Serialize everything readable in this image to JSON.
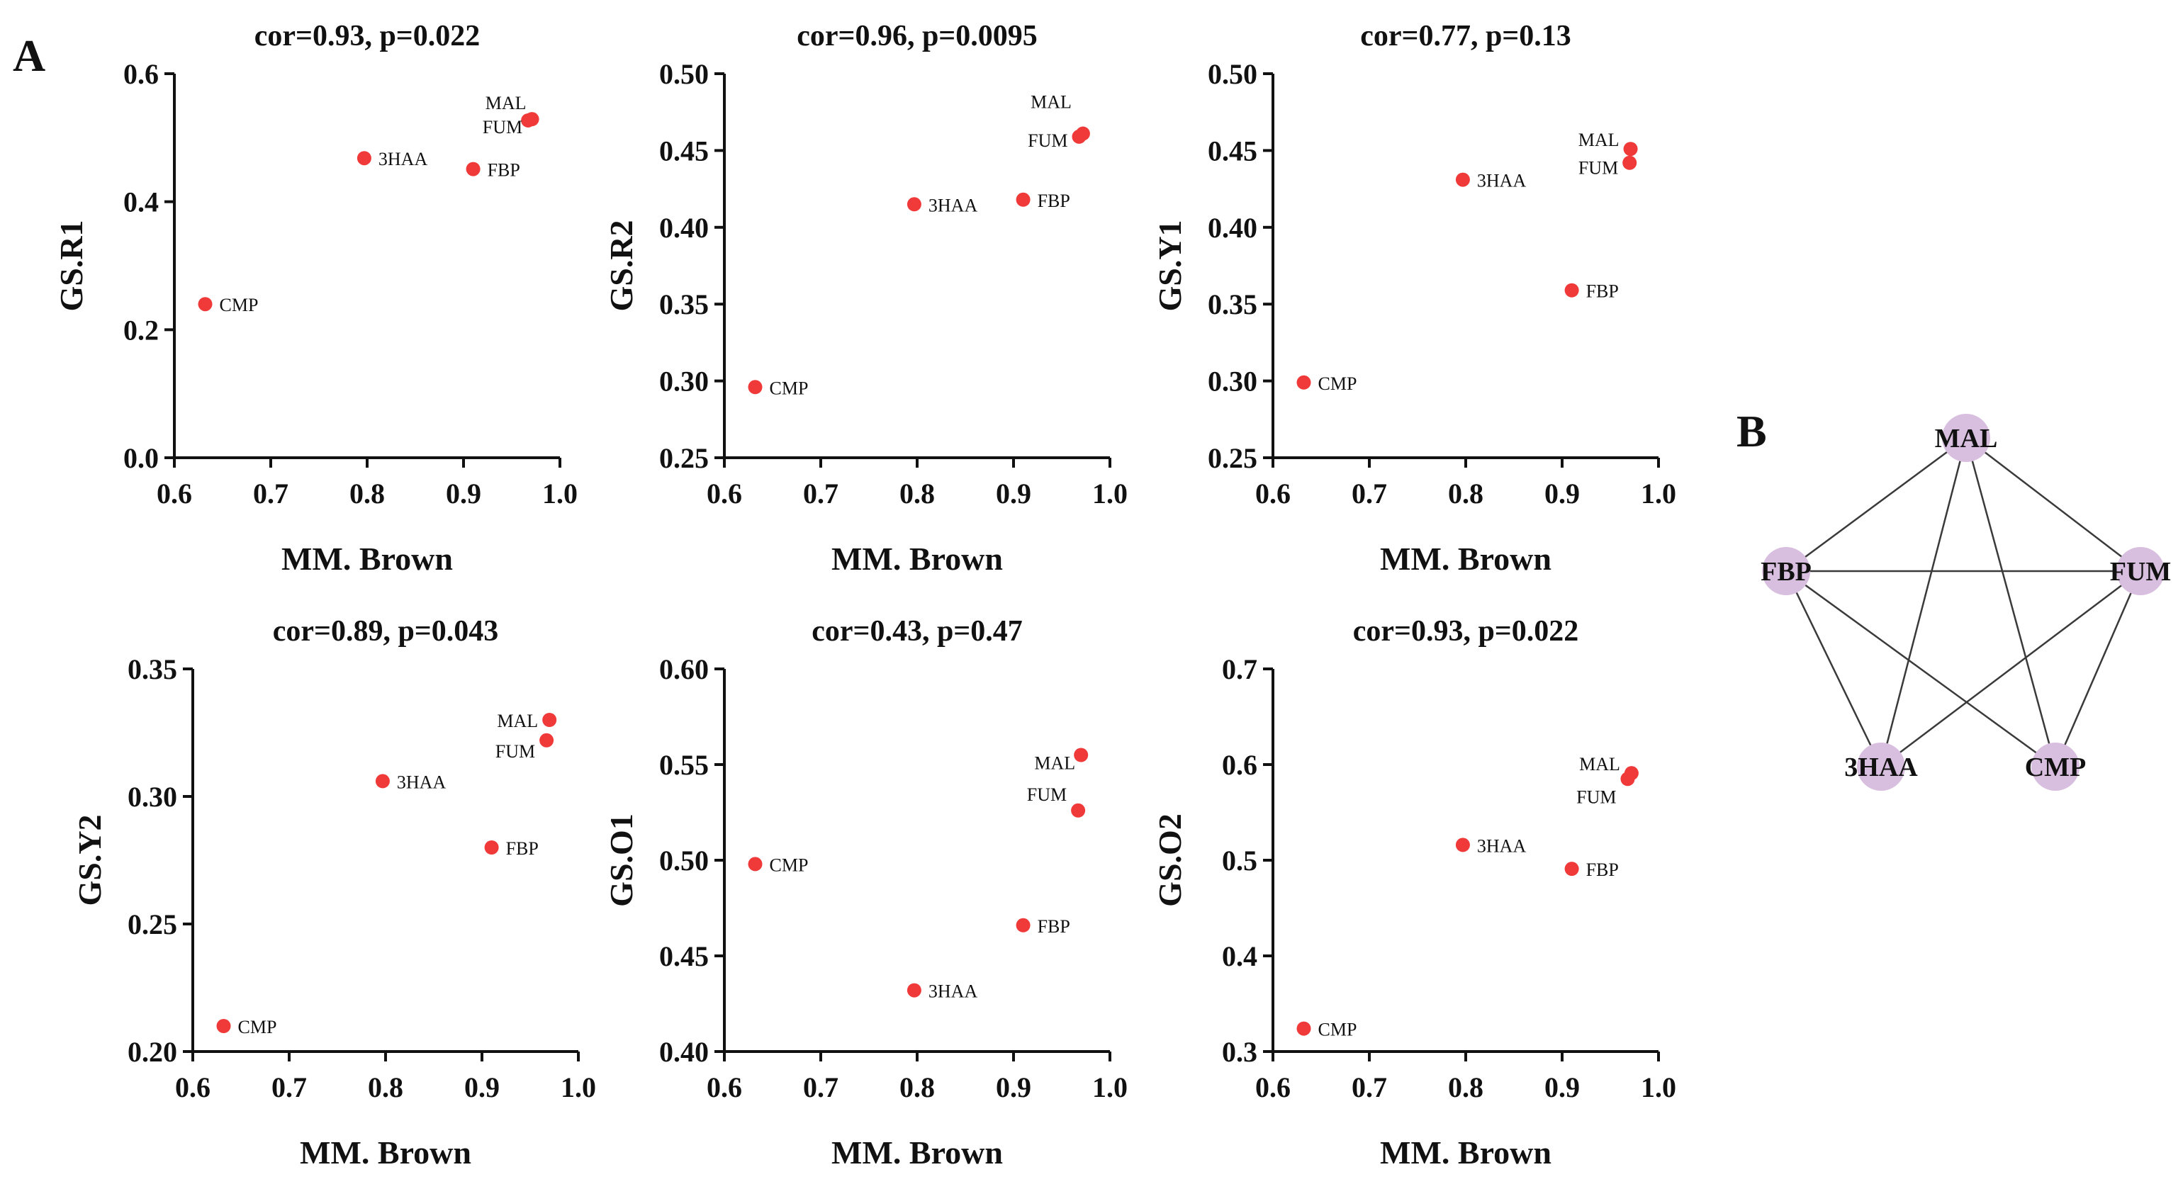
{
  "figure": {
    "panel_a": "A",
    "panel_b": "B"
  },
  "colors": {
    "point": "#f03a3a",
    "node": "#d9bfdf",
    "edge": "#3a3a3a",
    "axis": "#111111"
  },
  "chart_data": [
    {
      "type": "scatter",
      "title": "cor=0.93, p=0.022",
      "xlabel": "MM. Brown",
      "ylabel": "GS.R1",
      "xlim": [
        0.6,
        1.0
      ],
      "ylim": [
        0.0,
        0.6
      ],
      "xticks": [
        "0.6",
        "0.7",
        "0.8",
        "0.9",
        "1.0"
      ],
      "yticks": [
        "0.0",
        "0.2",
        "0.4",
        "0.6"
      ],
      "points": [
        {
          "label": "CMP",
          "x": 0.632,
          "y": 0.24
        },
        {
          "label": "3HAA",
          "x": 0.797,
          "y": 0.468
        },
        {
          "label": "FBP",
          "x": 0.91,
          "y": 0.451
        },
        {
          "label": "FUM",
          "x": 0.967,
          "y": 0.527
        },
        {
          "label": "MAL",
          "x": 0.971,
          "y": 0.529
        }
      ]
    },
    {
      "type": "scatter",
      "title": "cor=0.96, p=0.0095",
      "xlabel": "MM. Brown",
      "ylabel": "GS.R2",
      "xlim": [
        0.6,
        1.0
      ],
      "ylim": [
        0.25,
        0.5
      ],
      "xticks": [
        "0.6",
        "0.7",
        "0.8",
        "0.9",
        "1.0"
      ],
      "yticks": [
        "0.25",
        "0.30",
        "0.35",
        "0.40",
        "0.45",
        "0.50"
      ],
      "points": [
        {
          "label": "CMP",
          "x": 0.632,
          "y": 0.296
        },
        {
          "label": "3HAA",
          "x": 0.797,
          "y": 0.415
        },
        {
          "label": "FBP",
          "x": 0.91,
          "y": 0.418
        },
        {
          "label": "FUM",
          "x": 0.968,
          "y": 0.459
        },
        {
          "label": "MAL",
          "x": 0.972,
          "y": 0.461
        }
      ]
    },
    {
      "type": "scatter",
      "title": "cor=0.77, p=0.13",
      "xlabel": "MM. Brown",
      "ylabel": "GS.Y1",
      "xlim": [
        0.6,
        1.0
      ],
      "ylim": [
        0.25,
        0.5
      ],
      "xticks": [
        "0.6",
        "0.7",
        "0.8",
        "0.9",
        "1.0"
      ],
      "yticks": [
        "0.25",
        "0.30",
        "0.35",
        "0.40",
        "0.45",
        "0.50"
      ],
      "points": [
        {
          "label": "CMP",
          "x": 0.632,
          "y": 0.299
        },
        {
          "label": "3HAA",
          "x": 0.797,
          "y": 0.431
        },
        {
          "label": "FBP",
          "x": 0.91,
          "y": 0.359
        },
        {
          "label": "FUM",
          "x": 0.97,
          "y": 0.442
        },
        {
          "label": "MAL",
          "x": 0.971,
          "y": 0.451
        }
      ]
    },
    {
      "type": "scatter",
      "title": "cor=0.89, p=0.043",
      "xlabel": "MM. Brown",
      "ylabel": "GS.Y2",
      "xlim": [
        0.6,
        1.0
      ],
      "ylim": [
        0.2,
        0.35
      ],
      "xticks": [
        "0.6",
        "0.7",
        "0.8",
        "0.9",
        "1.0"
      ],
      "yticks": [
        "0.20",
        "0.25",
        "0.30",
        "0.35"
      ],
      "points": [
        {
          "label": "CMP",
          "x": 0.632,
          "y": 0.21
        },
        {
          "label": "3HAA",
          "x": 0.797,
          "y": 0.306
        },
        {
          "label": "FBP",
          "x": 0.91,
          "y": 0.28
        },
        {
          "label": "FUM",
          "x": 0.967,
          "y": 0.322
        },
        {
          "label": "MAL",
          "x": 0.97,
          "y": 0.33
        }
      ]
    },
    {
      "type": "scatter",
      "title": "cor=0.43, p=0.47",
      "xlabel": "MM. Brown",
      "ylabel": "GS.O1",
      "xlim": [
        0.6,
        1.0
      ],
      "ylim": [
        0.4,
        0.6
      ],
      "xticks": [
        "0.6",
        "0.7",
        "0.8",
        "0.9",
        "1.0"
      ],
      "yticks": [
        "0.40",
        "0.45",
        "0.50",
        "0.55",
        "0.60"
      ],
      "points": [
        {
          "label": "CMP",
          "x": 0.632,
          "y": 0.498
        },
        {
          "label": "3HAA",
          "x": 0.797,
          "y": 0.432
        },
        {
          "label": "FBP",
          "x": 0.91,
          "y": 0.466
        },
        {
          "label": "FUM",
          "x": 0.967,
          "y": 0.526
        },
        {
          "label": "MAL",
          "x": 0.97,
          "y": 0.555
        }
      ]
    },
    {
      "type": "scatter",
      "title": "cor=0.93, p=0.022",
      "xlabel": "MM. Brown",
      "ylabel": "GS.O2",
      "xlim": [
        0.6,
        1.0
      ],
      "ylim": [
        0.3,
        0.7
      ],
      "xticks": [
        "0.6",
        "0.7",
        "0.8",
        "0.9",
        "1.0"
      ],
      "yticks": [
        "0.3",
        "0.4",
        "0.5",
        "0.6",
        "0.7"
      ],
      "points": [
        {
          "label": "CMP",
          "x": 0.632,
          "y": 0.324
        },
        {
          "label": "3HAA",
          "x": 0.797,
          "y": 0.516
        },
        {
          "label": "FBP",
          "x": 0.91,
          "y": 0.491
        },
        {
          "label": "FUM",
          "x": 0.968,
          "y": 0.585
        },
        {
          "label": "MAL",
          "x": 0.972,
          "y": 0.591
        }
      ]
    }
  ],
  "network": {
    "nodes": [
      "MAL",
      "FUM",
      "CMP",
      "3HAA",
      "FBP"
    ],
    "edges": [
      [
        "MAL",
        "FBP"
      ],
      [
        "MAL",
        "FUM"
      ],
      [
        "MAL",
        "3HAA"
      ],
      [
        "MAL",
        "CMP"
      ],
      [
        "FBP",
        "FUM"
      ],
      [
        "FBP",
        "3HAA"
      ],
      [
        "FBP",
        "CMP"
      ],
      [
        "FUM",
        "3HAA"
      ],
      [
        "FUM",
        "CMP"
      ]
    ]
  }
}
